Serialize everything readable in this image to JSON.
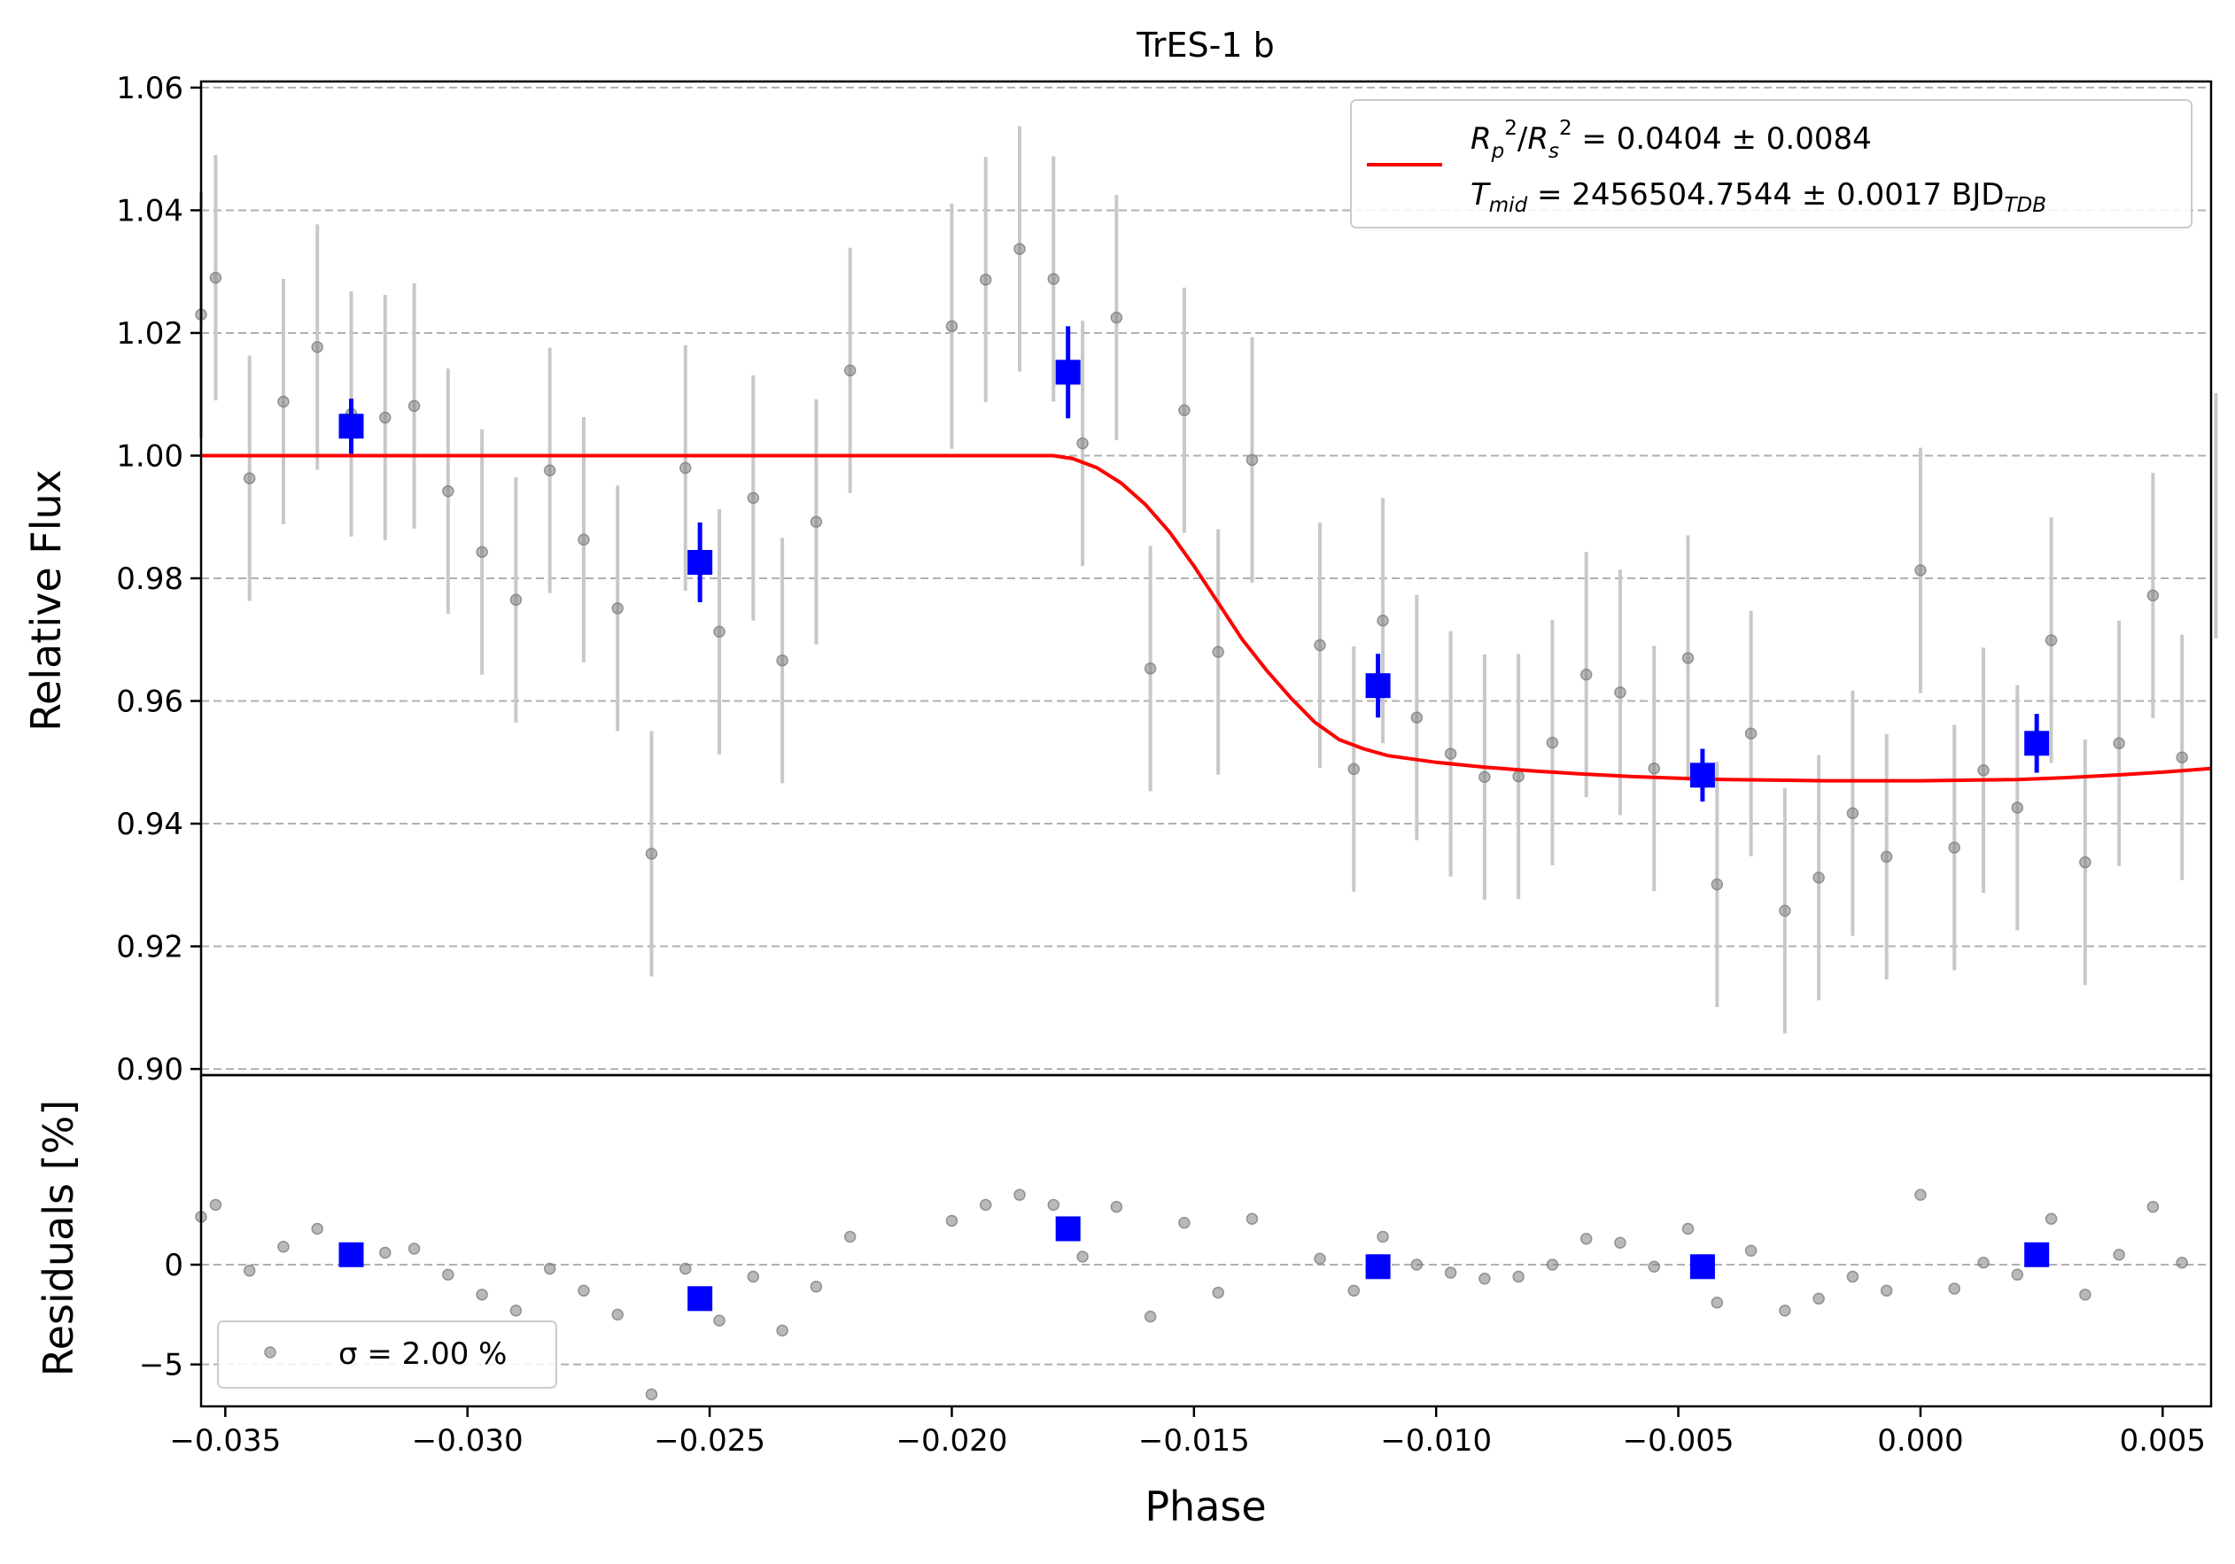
{
  "chart_data": [
    {
      "type": "scatter",
      "title": "TrES-1 b",
      "xlabel": "Phase",
      "ylabel": "Relative Flux",
      "xlim": [
        -0.0355,
        0.006
      ],
      "ylim": [
        0.899,
        1.061
      ],
      "y_ticks": [
        0.9,
        0.92,
        0.94,
        0.96,
        0.98,
        1.0,
        1.02,
        1.04,
        1.06
      ],
      "y_tick_labels": [
        "0.90",
        "0.92",
        "0.94",
        "0.96",
        "0.98",
        "1.00",
        "1.02",
        "1.04",
        "1.06"
      ],
      "grid": "horizontal dashed",
      "legend_placement": "top-right",
      "legend_lines": [
        "R_p^2/R_s^2 = 0.0404 ± 0.0084",
        "T_mid = 2456504.7544 ± 0.0017 BJD_TDB"
      ],
      "series": [
        {
          "kind": "points",
          "color": "#808080",
          "x": [
            -0.0355,
            -0.0352,
            -0.0345,
            -0.0338,
            -0.0331,
            -0.0324,
            -0.0317,
            -0.0311,
            -0.0304,
            -0.0297,
            -0.029,
            -0.0283,
            -0.0276,
            -0.0269,
            -0.0262,
            -0.0255,
            -0.0248,
            -0.0241,
            -0.0235,
            -0.0228,
            -0.0221,
            -0.02,
            -0.0193,
            -0.0186,
            -0.0179,
            -0.0173,
            -0.0166,
            -0.0159,
            -0.0152,
            -0.0145,
            -0.0138,
            -0.0124,
            -0.0117,
            -0.0111,
            -0.0104,
            -0.0097,
            -0.009,
            -0.0083,
            -0.0076,
            -0.0069,
            -0.0062,
            -0.0055,
            -0.0048,
            -0.0042,
            -0.0035,
            -0.0028,
            -0.0021,
            -0.0014,
            -0.0007,
            0.0,
            0.0007,
            0.0013,
            0.002,
            0.0027,
            0.0034,
            0.0041,
            0.0048,
            0.0054,
            0.0061
          ],
          "y": [
            1.023,
            1.029,
            0.9963,
            1.0088,
            1.0177,
            1.0068,
            1.0062,
            1.0081,
            0.9942,
            0.9843,
            0.9765,
            0.9976,
            0.9863,
            0.9751,
            0.9351,
            0.998,
            0.9713,
            0.9931,
            0.9666,
            0.9892,
            1.0139,
            1.0211,
            1.0287,
            1.0337,
            1.0288,
            1.002,
            1.0225,
            0.9653,
            1.0074,
            0.968,
            0.9993,
            0.9691,
            0.9489,
            0.9731,
            0.9573,
            0.9514,
            0.9476,
            0.9477,
            0.9532,
            0.9643,
            0.9614,
            0.949,
            0.967,
            0.9301,
            0.9547,
            0.9258,
            0.9312,
            0.9417,
            0.9346,
            0.9813,
            0.9361,
            0.9487,
            0.9426,
            0.9699,
            0.9337,
            0.9531,
            0.9772,
            0.9508,
            0.9902
          ],
          "err": 0.02
        },
        {
          "kind": "binned",
          "color": "#0000ff",
          "x": [
            -0.0324,
            -0.0252,
            -0.0176,
            -0.0112,
            -0.0045,
            0.0024
          ],
          "y": [
            1.0048,
            0.9826,
            1.0136,
            0.9625,
            0.9479,
            0.9531
          ],
          "err": [
            0.0045,
            0.0065,
            0.0075,
            0.0052,
            0.0043,
            0.0048
          ]
        },
        {
          "kind": "model",
          "color": "#ff0000",
          "x": [
            -0.0355,
            -0.033,
            -0.03,
            -0.027,
            -0.024,
            -0.021,
            -0.019,
            -0.0179,
            -0.0175,
            -0.017,
            -0.0165,
            -0.016,
            -0.0155,
            -0.015,
            -0.0145,
            -0.014,
            -0.0135,
            -0.013,
            -0.0125,
            -0.012,
            -0.0115,
            -0.011,
            -0.01,
            -0.009,
            -0.008,
            -0.007,
            -0.006,
            -0.005,
            -0.004,
            -0.003,
            -0.002,
            -0.001,
            0.0,
            0.001,
            0.002,
            0.003,
            0.004,
            0.005,
            0.006
          ],
          "y": [
            1.0,
            1.0,
            1.0,
            1.0,
            1.0,
            1.0,
            1.0,
            1.0,
            0.9995,
            0.998,
            0.9955,
            0.992,
            0.9875,
            0.982,
            0.976,
            0.97,
            0.965,
            0.9605,
            0.9565,
            0.9537,
            0.9522,
            0.9511,
            0.95,
            0.9492,
            0.9486,
            0.9481,
            0.9477,
            0.9474,
            0.9472,
            0.9471,
            0.947,
            0.947,
            0.947,
            0.9471,
            0.9472,
            0.9475,
            0.9479,
            0.9484,
            0.949
          ]
        }
      ]
    },
    {
      "type": "scatter",
      "xlabel": "Phase",
      "ylabel": "Residuals [%]",
      "xlim": [
        -0.0355,
        0.006
      ],
      "ylim": [
        -7.1,
        9.5
      ],
      "x_ticks": [
        -0.035,
        -0.03,
        -0.025,
        -0.02,
        -0.015,
        -0.01,
        -0.005,
        0.0,
        0.005
      ],
      "x_tick_labels": [
        "−0.035",
        "−0.030",
        "−0.025",
        "−0.020",
        "−0.015",
        "−0.010",
        "−0.005",
        "0.000",
        "0.005"
      ],
      "y_ticks": [
        -5,
        0
      ],
      "y_tick_labels": [
        "−5",
        "0"
      ],
      "grid": "horizontal dashed",
      "legend_placement": "bottom-left",
      "legend_label": "σ = 2.00 %",
      "series": [
        {
          "kind": "points",
          "color": "#808080",
          "x": [
            -0.0355,
            -0.0352,
            -0.0345,
            -0.0338,
            -0.0331,
            -0.0317,
            -0.0311,
            -0.0304,
            -0.0297,
            -0.029,
            -0.0283,
            -0.0276,
            -0.0269,
            -0.0262,
            -0.0255,
            -0.0248,
            -0.0241,
            -0.0235,
            -0.0228,
            -0.0221,
            -0.02,
            -0.0193,
            -0.0186,
            -0.0179,
            -0.0173,
            -0.0166,
            -0.0159,
            -0.0152,
            -0.0145,
            -0.0138,
            -0.0124,
            -0.0117,
            -0.0111,
            -0.0104,
            -0.0097,
            -0.009,
            -0.0083,
            -0.0076,
            -0.0069,
            -0.0062,
            -0.0055,
            -0.0048,
            -0.0042,
            -0.0035,
            -0.0028,
            -0.0021,
            -0.0014,
            -0.0007,
            0.0,
            0.0007,
            0.0013,
            0.002,
            0.0027,
            0.0034,
            0.0041,
            0.0048,
            0.0054,
            0.0061
          ],
          "y": [
            2.4,
            3.0,
            -0.3,
            0.9,
            1.8,
            0.6,
            0.8,
            -0.5,
            -1.5,
            -2.3,
            -0.2,
            -1.3,
            -2.5,
            -6.5,
            -0.2,
            -2.8,
            -0.6,
            -3.3,
            -1.1,
            1.4,
            2.2,
            3.0,
            3.5,
            3.0,
            0.4,
            2.9,
            -2.6,
            2.1,
            -1.4,
            2.3,
            0.3,
            -1.3,
            1.4,
            0.0,
            -0.4,
            -0.7,
            -0.6,
            0.0,
            1.3,
            1.1,
            -0.1,
            1.8,
            -1.9,
            0.7,
            -2.3,
            -1.7,
            -0.6,
            -1.3,
            3.5,
            -1.2,
            0.1,
            -0.5,
            2.3,
            -1.5,
            0.5,
            2.9,
            0.1,
            4.1
          ]
        },
        {
          "kind": "binned",
          "color": "#0000ff",
          "x": [
            -0.0324,
            -0.0252,
            -0.0176,
            -0.0112,
            -0.0045,
            0.0024
          ],
          "y": [
            0.5,
            -1.7,
            1.8,
            -0.1,
            -0.1,
            0.5
          ]
        }
      ]
    }
  ]
}
